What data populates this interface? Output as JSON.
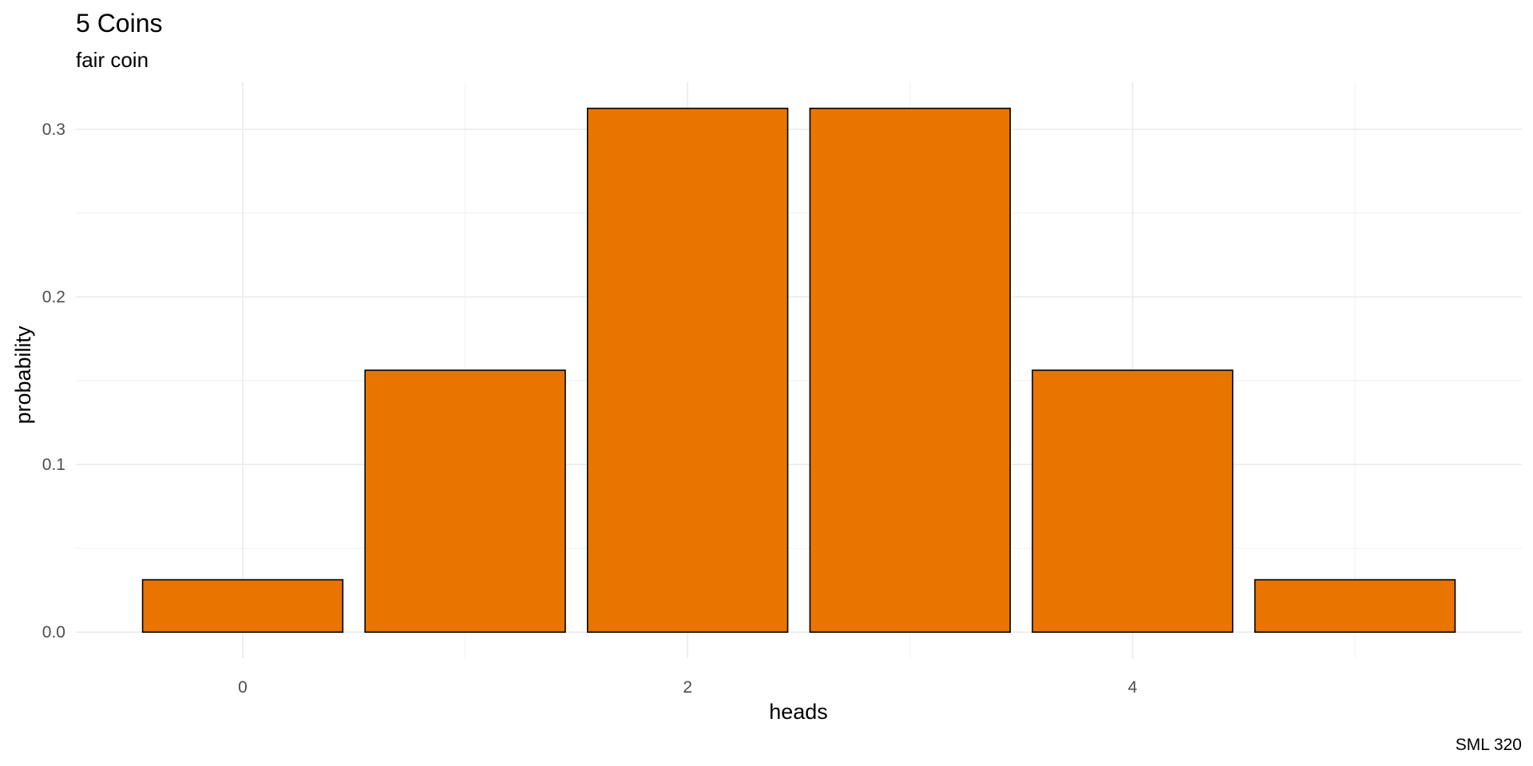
{
  "chart_data": {
    "type": "bar",
    "title": "5 Coins",
    "subtitle": "fair coin",
    "xlabel": "heads",
    "ylabel": "probability",
    "caption": "SML 320",
    "categories": [
      0,
      1,
      2,
      3,
      4,
      5
    ],
    "values": [
      0.03125,
      0.15625,
      0.3125,
      0.3125,
      0.15625,
      0.03125
    ],
    "x_ticks": [
      0,
      2,
      4
    ],
    "x_tick_labels": [
      "0",
      "2",
      "4"
    ],
    "y_ticks": [
      0.0,
      0.1,
      0.2,
      0.3
    ],
    "y_tick_labels": [
      "0.0",
      "0.1",
      "0.2",
      "0.3"
    ],
    "xlim": [
      -0.75,
      5.75
    ],
    "ylim": [
      -0.0156,
      0.3281
    ],
    "grid": true,
    "legend": "none",
    "colors": {
      "bar_fill": "#E87500",
      "bar_outline": "#000000",
      "grid": "#EBEBEB"
    }
  }
}
